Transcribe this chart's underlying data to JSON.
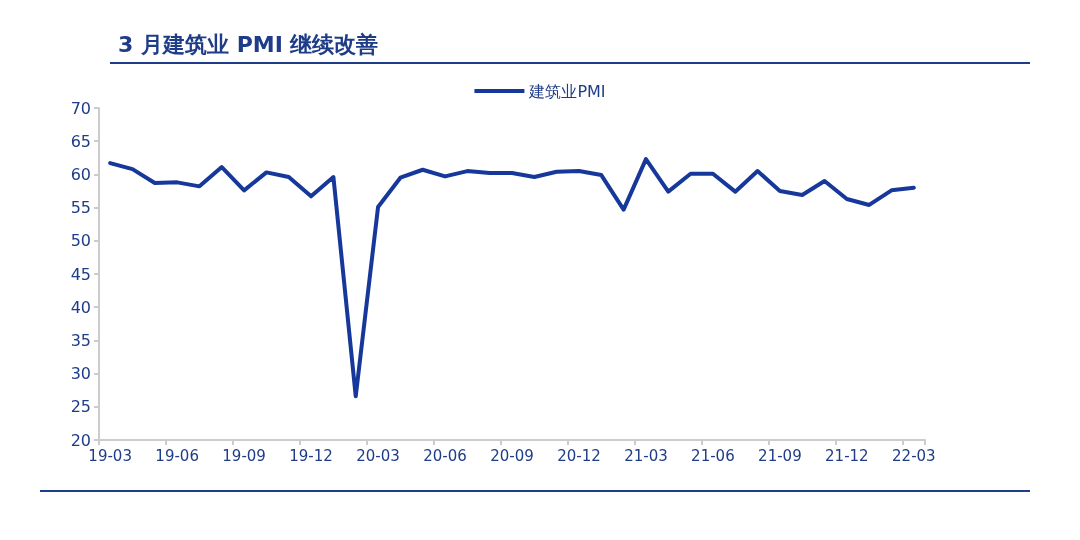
{
  "chart_data": {
    "type": "line",
    "title": "3 月建筑业 PMI 继续改善",
    "categories": [
      "19-03",
      null,
      null,
      "19-06",
      null,
      null,
      "19-09",
      null,
      null,
      "19-12",
      null,
      null,
      "20-03",
      null,
      null,
      "20-06",
      null,
      null,
      "20-09",
      null,
      null,
      "20-12",
      null,
      null,
      "21-03",
      null,
      null,
      "21-06",
      null,
      null,
      "21-09",
      null,
      null,
      "21-12",
      null,
      null,
      "22-03"
    ],
    "series": [
      {
        "name": "建筑业PMI",
        "color": "#16389a",
        "values": [
          61.7,
          60.8,
          58.7,
          58.8,
          58.2,
          61.1,
          57.6,
          60.3,
          59.6,
          56.7,
          59.6,
          26.6,
          55.1,
          59.5,
          60.7,
          59.7,
          60.5,
          60.2,
          60.2,
          59.6,
          60.4,
          60.5,
          59.9,
          54.7,
          62.3,
          57.4,
          60.1,
          60.1,
          57.4,
          60.5,
          57.5,
          56.9,
          59.0,
          56.3,
          55.4,
          57.6,
          58.0
        ]
      }
    ],
    "ylim": [
      20,
      70
    ],
    "yticks": [
      20,
      25,
      30,
      35,
      40,
      45,
      50,
      55,
      60,
      65,
      70
    ],
    "grid": false,
    "legend": "top",
    "marker": "none",
    "line_style": "solid"
  }
}
